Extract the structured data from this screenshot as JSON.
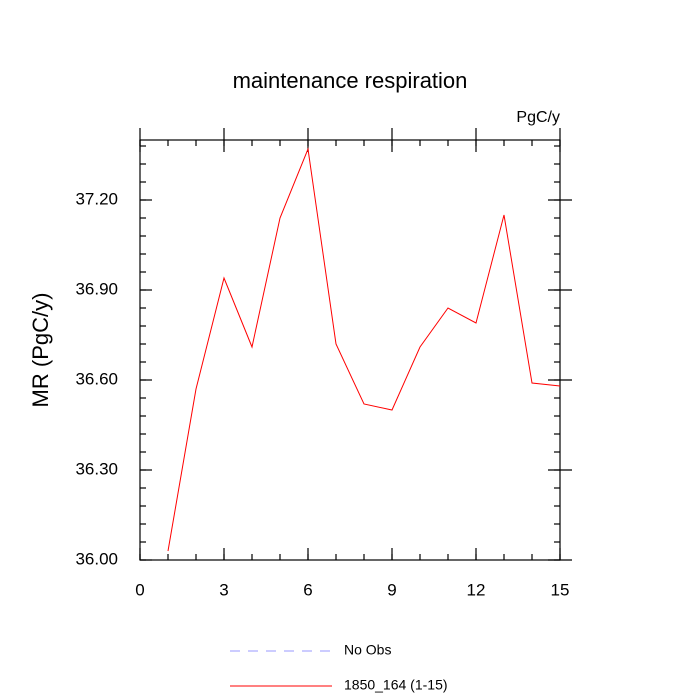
{
  "chart_data": {
    "type": "line",
    "title": "maintenance respiration",
    "units": "PgC/y",
    "y_label": "MR  (PgC/y)",
    "x": [
      1,
      2,
      3,
      4,
      5,
      6,
      7,
      8,
      9,
      10,
      11,
      12,
      13,
      14,
      15
    ],
    "series": [
      {
        "name": "No Obs",
        "color": "#9999ff",
        "dashed": true,
        "values": null
      },
      {
        "name": "1850_164 (1-15)",
        "color": "#ff0000",
        "dashed": false,
        "values": [
          36.03,
          36.57,
          36.94,
          36.71,
          37.14,
          37.37,
          36.72,
          36.52,
          36.5,
          36.71,
          36.84,
          36.79,
          37.15,
          36.59,
          36.58
        ]
      }
    ],
    "xlim": [
      0,
      15
    ],
    "xticks": [
      0,
      3,
      6,
      9,
      12,
      15
    ],
    "ylim": [
      36.0,
      37.4
    ],
    "yticks": [
      {
        "value": 36.0,
        "label": "36.00"
      },
      {
        "value": 36.3,
        "label": "36.30"
      },
      {
        "value": 36.6,
        "label": "36.60"
      },
      {
        "value": 36.9,
        "label": "36.90"
      },
      {
        "value": 37.2,
        "label": "37.20"
      }
    ]
  }
}
